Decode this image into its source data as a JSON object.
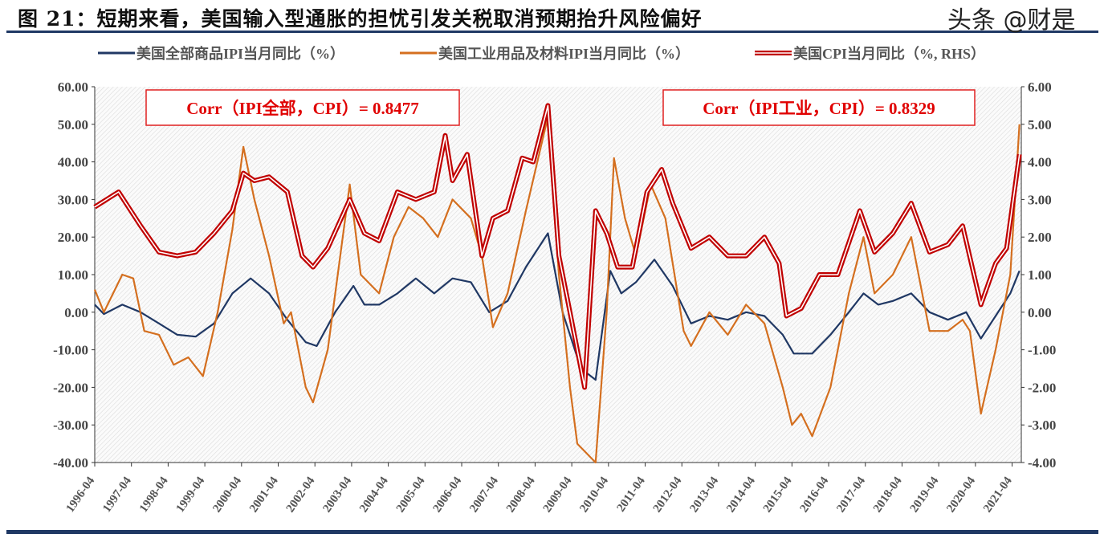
{
  "title": "图 21：短期来看，美国输入型通胀的担忧引发关税取消预期抬升风险偏好",
  "watermark": "头条 @财是",
  "chart_data": {
    "type": "line",
    "title": "图 21：短期来看，美国输入型通胀的担忧引发关税取消预期抬升风险偏好",
    "legend_position": "top",
    "left_axis": {
      "ylim": [
        -40,
        60
      ],
      "ticks": [
        "60.00",
        "50.00",
        "40.00",
        "30.00",
        "20.00",
        "10.00",
        "0.00",
        "-10.00",
        "-20.00",
        "-30.00",
        "-40.00"
      ]
    },
    "right_axis": {
      "ylim": [
        -4,
        6
      ],
      "ticks": [
        "6.00",
        "5.00",
        "4.00",
        "3.00",
        "2.00",
        "1.00",
        "0.00",
        "-1.00",
        "-2.00",
        "-3.00",
        "-4.00"
      ]
    },
    "x_ticks": [
      "1996-04",
      "1997-04",
      "1998-04",
      "1999-04",
      "2000-04",
      "2001-04",
      "2002-04",
      "2003-04",
      "2004-04",
      "2005-04",
      "2006-04",
      "2007-04",
      "2008-04",
      "2009-04",
      "2010-04",
      "2011-04",
      "2012-04",
      "2013-04",
      "2014-04",
      "2015-04",
      "2016-04",
      "2017-04",
      "2018-04",
      "2019-04",
      "2020-04",
      "2021-04"
    ],
    "xlim": [
      1996.25,
      2021.5
    ],
    "annotations": [
      "Corr（IPI全部，CPI）= 0.8477",
      "Corr（IPI工业，CPI）= 0.8329"
    ],
    "series": [
      {
        "name": "美国全部商品IPI当月同比（%）",
        "color": "#203864",
        "axis": "left",
        "points": [
          [
            1996.25,
            2
          ],
          [
            1996.5,
            -0.5
          ],
          [
            1997,
            2
          ],
          [
            1997.5,
            0
          ],
          [
            1998,
            -3
          ],
          [
            1998.5,
            -6
          ],
          [
            1999,
            -6.5
          ],
          [
            1999.5,
            -3
          ],
          [
            2000,
            5
          ],
          [
            2000.5,
            9
          ],
          [
            2001,
            5
          ],
          [
            2001.5,
            -2
          ],
          [
            2002,
            -8
          ],
          [
            2002.3,
            -9
          ],
          [
            2002.8,
            0
          ],
          [
            2003.3,
            7
          ],
          [
            2003.6,
            2
          ],
          [
            2004,
            2
          ],
          [
            2004.5,
            5
          ],
          [
            2005,
            9
          ],
          [
            2005.5,
            5
          ],
          [
            2006,
            9
          ],
          [
            2006.5,
            8
          ],
          [
            2007,
            0
          ],
          [
            2007.5,
            3
          ],
          [
            2008,
            12
          ],
          [
            2008.6,
            21
          ],
          [
            2009,
            0
          ],
          [
            2009.5,
            -15
          ],
          [
            2009.9,
            -18
          ],
          [
            2010.3,
            11
          ],
          [
            2010.6,
            5
          ],
          [
            2011,
            8
          ],
          [
            2011.5,
            14
          ],
          [
            2012,
            7
          ],
          [
            2012.5,
            -3
          ],
          [
            2013,
            -1
          ],
          [
            2013.5,
            -2
          ],
          [
            2014,
            0
          ],
          [
            2014.5,
            -1
          ],
          [
            2015,
            -6
          ],
          [
            2015.3,
            -11
          ],
          [
            2015.8,
            -11
          ],
          [
            2016.3,
            -6
          ],
          [
            2016.8,
            0
          ],
          [
            2017.2,
            5
          ],
          [
            2017.6,
            2
          ],
          [
            2018,
            3
          ],
          [
            2018.5,
            5
          ],
          [
            2019,
            0
          ],
          [
            2019.5,
            -2
          ],
          [
            2020,
            0
          ],
          [
            2020.4,
            -7
          ],
          [
            2020.8,
            -1
          ],
          [
            2021.2,
            5
          ],
          [
            2021.45,
            11
          ]
        ]
      },
      {
        "name": "美国工业用品及材料IPI当月同比（%）",
        "color": "#d46f1f",
        "axis": "left",
        "points": [
          [
            1996.25,
            6
          ],
          [
            1996.5,
            0
          ],
          [
            1997,
            10
          ],
          [
            1997.3,
            9
          ],
          [
            1997.6,
            -5
          ],
          [
            1998,
            -6
          ],
          [
            1998.4,
            -14
          ],
          [
            1998.8,
            -12
          ],
          [
            1999.2,
            -17
          ],
          [
            1999.6,
            0
          ],
          [
            2000,
            22
          ],
          [
            2000.3,
            44
          ],
          [
            2000.6,
            30
          ],
          [
            2001,
            15
          ],
          [
            2001.4,
            -3
          ],
          [
            2001.6,
            0
          ],
          [
            2002,
            -20
          ],
          [
            2002.2,
            -24
          ],
          [
            2002.6,
            -10
          ],
          [
            2003.2,
            34
          ],
          [
            2003.5,
            10
          ],
          [
            2004,
            5
          ],
          [
            2004.4,
            20
          ],
          [
            2004.8,
            28
          ],
          [
            2005.2,
            25
          ],
          [
            2005.6,
            20
          ],
          [
            2006,
            30
          ],
          [
            2006.5,
            25
          ],
          [
            2006.8,
            15
          ],
          [
            2007.1,
            -4
          ],
          [
            2007.5,
            5
          ],
          [
            2008,
            27
          ],
          [
            2008.6,
            52
          ],
          [
            2008.9,
            10
          ],
          [
            2009.2,
            -20
          ],
          [
            2009.4,
            -35
          ],
          [
            2009.9,
            -40
          ],
          [
            2010.2,
            0
          ],
          [
            2010.4,
            41
          ],
          [
            2010.7,
            25
          ],
          [
            2011,
            15
          ],
          [
            2011.4,
            34
          ],
          [
            2011.8,
            25
          ],
          [
            2012.3,
            -5
          ],
          [
            2012.5,
            -9
          ],
          [
            2013,
            0
          ],
          [
            2013.5,
            -6
          ],
          [
            2014,
            2
          ],
          [
            2014.5,
            -3
          ],
          [
            2015,
            -20
          ],
          [
            2015.25,
            -30
          ],
          [
            2015.5,
            -27
          ],
          [
            2015.8,
            -33
          ],
          [
            2016.3,
            -20
          ],
          [
            2016.8,
            5
          ],
          [
            2017.2,
            20
          ],
          [
            2017.5,
            5
          ],
          [
            2018,
            10
          ],
          [
            2018.5,
            20
          ],
          [
            2019,
            -5
          ],
          [
            2019.5,
            -5
          ],
          [
            2019.9,
            -2
          ],
          [
            2020.1,
            -5
          ],
          [
            2020.4,
            -27
          ],
          [
            2020.8,
            -10
          ],
          [
            2021.2,
            10
          ],
          [
            2021.45,
            50
          ]
        ]
      },
      {
        "name": "美国CPI当月同比（%, RHS）",
        "color": "#c00000",
        "axis": "right",
        "points": [
          [
            1996.25,
            2.8
          ],
          [
            1996.9,
            3.2
          ],
          [
            1997.5,
            2.3
          ],
          [
            1998,
            1.6
          ],
          [
            1998.5,
            1.5
          ],
          [
            1999,
            1.6
          ],
          [
            1999.5,
            2.1
          ],
          [
            2000,
            2.7
          ],
          [
            2000.3,
            3.7
          ],
          [
            2000.6,
            3.5
          ],
          [
            2001,
            3.6
          ],
          [
            2001.5,
            3.2
          ],
          [
            2001.9,
            1.5
          ],
          [
            2002.2,
            1.2
          ],
          [
            2002.6,
            1.7
          ],
          [
            2003.2,
            3.0
          ],
          [
            2003.6,
            2.1
          ],
          [
            2004,
            1.9
          ],
          [
            2004.5,
            3.2
          ],
          [
            2005,
            3.0
          ],
          [
            2005.5,
            3.2
          ],
          [
            2005.8,
            4.7
          ],
          [
            2006,
            3.5
          ],
          [
            2006.4,
            4.2
          ],
          [
            2006.8,
            1.5
          ],
          [
            2007.1,
            2.5
          ],
          [
            2007.5,
            2.7
          ],
          [
            2007.9,
            4.1
          ],
          [
            2008.2,
            4.0
          ],
          [
            2008.6,
            5.5
          ],
          [
            2008.9,
            1.5
          ],
          [
            2009.2,
            0
          ],
          [
            2009.6,
            -2.0
          ],
          [
            2009.9,
            2.7
          ],
          [
            2010.2,
            2.1
          ],
          [
            2010.5,
            1.2
          ],
          [
            2010.9,
            1.2
          ],
          [
            2011.3,
            3.2
          ],
          [
            2011.7,
            3.8
          ],
          [
            2012,
            2.9
          ],
          [
            2012.5,
            1.7
          ],
          [
            2013,
            2.0
          ],
          [
            2013.5,
            1.5
          ],
          [
            2014,
            1.5
          ],
          [
            2014.5,
            2.0
          ],
          [
            2014.9,
            1.3
          ],
          [
            2015.1,
            -0.1
          ],
          [
            2015.5,
            0.1
          ],
          [
            2016,
            1.0
          ],
          [
            2016.5,
            1.0
          ],
          [
            2017.1,
            2.7
          ],
          [
            2017.5,
            1.6
          ],
          [
            2018,
            2.1
          ],
          [
            2018.5,
            2.9
          ],
          [
            2019,
            1.6
          ],
          [
            2019.5,
            1.8
          ],
          [
            2019.9,
            2.3
          ],
          [
            2020.4,
            0.2
          ],
          [
            2020.8,
            1.3
          ],
          [
            2021.1,
            1.7
          ],
          [
            2021.45,
            4.2
          ]
        ]
      }
    ]
  }
}
